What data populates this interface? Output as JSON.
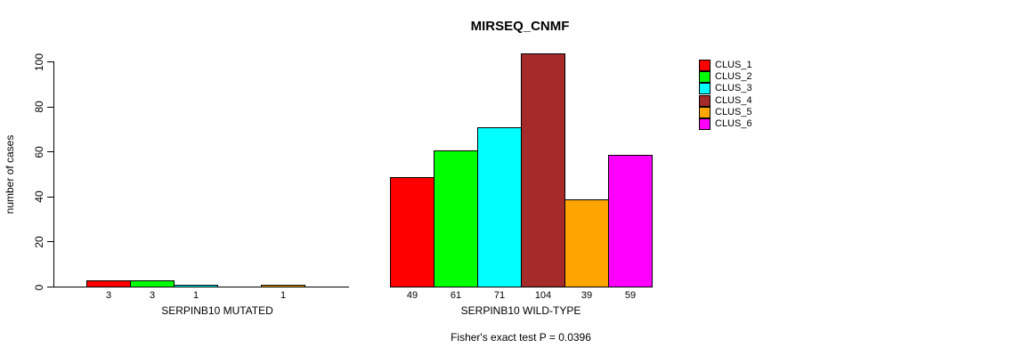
{
  "chart_data": {
    "type": "bar",
    "title": "MIRSEQ_CNMF",
    "ylabel": "number of cases",
    "xlabel": "",
    "ylim": [
      0,
      100
    ],
    "yticks": [
      0,
      20,
      40,
      60,
      80,
      100
    ],
    "grid": false,
    "legend_position": "right",
    "categories": [
      "SERPINB10 MUTATED",
      "SERPINB10 WILD-TYPE"
    ],
    "series": [
      {
        "name": "CLUS_1",
        "color": "#FF0000",
        "values": [
          3,
          49
        ]
      },
      {
        "name": "CLUS_2",
        "color": "#00FF00",
        "values": [
          3,
          61
        ]
      },
      {
        "name": "CLUS_3",
        "color": "#00FFFF",
        "values": [
          1,
          71
        ]
      },
      {
        "name": "CLUS_4",
        "color": "#A52A2A",
        "values": [
          0,
          104
        ]
      },
      {
        "name": "CLUS_5",
        "color": "#FFA500",
        "values": [
          1,
          39
        ]
      },
      {
        "name": "CLUS_6",
        "color": "#FF00FF",
        "values": [
          0,
          59
        ]
      }
    ],
    "bar_value_labels": {
      "shown_for": "nonzero values",
      "position": "below axis"
    },
    "annotation": "Fisher's exact test P = 0.0396"
  }
}
